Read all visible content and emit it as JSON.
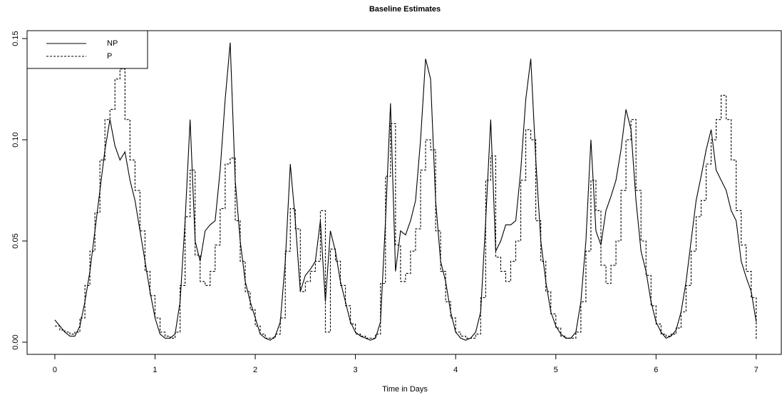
{
  "chart_data": {
    "type": "line",
    "title": "Baseline Estimates",
    "x_label": "Time in Days",
    "x": [
      0,
      0.05,
      0.1,
      0.15,
      0.2,
      0.25,
      0.3,
      0.35,
      0.4,
      0.45,
      0.5,
      0.55,
      0.6,
      0.65,
      0.7,
      0.75,
      0.8,
      0.85,
      0.9,
      0.95,
      1,
      1.05,
      1.1,
      1.15,
      1.2,
      1.25,
      1.3,
      1.35,
      1.4,
      1.45,
      1.5,
      1.55,
      1.6,
      1.65,
      1.7,
      1.75,
      1.8,
      1.85,
      1.9,
      1.95,
      2,
      2.05,
      2.1,
      2.15,
      2.2,
      2.25,
      2.3,
      2.35,
      2.4,
      2.45,
      2.5,
      2.55,
      2.6,
      2.65,
      2.7,
      2.75,
      2.8,
      2.85,
      2.9,
      2.95,
      3,
      3.05,
      3.1,
      3.15,
      3.2,
      3.25,
      3.3,
      3.35,
      3.4,
      3.45,
      3.5,
      3.55,
      3.6,
      3.65,
      3.7,
      3.75,
      3.8,
      3.85,
      3.9,
      3.95,
      4,
      4.05,
      4.1,
      4.15,
      4.2,
      4.25,
      4.3,
      4.35,
      4.4,
      4.45,
      4.5,
      4.55,
      4.6,
      4.65,
      4.7,
      4.75,
      4.8,
      4.85,
      4.9,
      4.95,
      5,
      5.05,
      5.1,
      5.15,
      5.2,
      5.25,
      5.3,
      5.35,
      5.4,
      5.45,
      5.5,
      5.55,
      5.6,
      5.65,
      5.7,
      5.75,
      5.8,
      5.85,
      5.9,
      5.95,
      6,
      6.05,
      6.1,
      6.15,
      6.2,
      6.25,
      6.3,
      6.35,
      6.4,
      6.45,
      6.5,
      6.55,
      6.6,
      6.65,
      6.7,
      6.75,
      6.8,
      6.85,
      6.9,
      6.95,
      7
    ],
    "series": [
      {
        "name": "NP",
        "color": "#000000",
        "linestyle": "solid",
        "drawstyle": "line",
        "values": [
          0.011,
          0.008,
          0.005,
          0.003,
          0.003,
          0.008,
          0.02,
          0.035,
          0.055,
          0.075,
          0.095,
          0.11,
          0.097,
          0.09,
          0.094,
          0.08,
          0.07,
          0.055,
          0.04,
          0.025,
          0.012,
          0.004,
          0.002,
          0.002,
          0.004,
          0.02,
          0.06,
          0.11,
          0.05,
          0.04,
          0.055,
          0.058,
          0.06,
          0.085,
          0.12,
          0.148,
          0.08,
          0.05,
          0.03,
          0.02,
          0.012,
          0.004,
          0.002,
          0.001,
          0.003,
          0.01,
          0.04,
          0.088,
          0.06,
          0.025,
          0.033,
          0.036,
          0.04,
          0.06,
          0.02,
          0.055,
          0.045,
          0.03,
          0.02,
          0.01,
          0.005,
          0.003,
          0.002,
          0.001,
          0.002,
          0.01,
          0.06,
          0.118,
          0.035,
          0.055,
          0.053,
          0.06,
          0.07,
          0.1,
          0.14,
          0.13,
          0.07,
          0.04,
          0.03,
          0.015,
          0.005,
          0.002,
          0.001,
          0.002,
          0.005,
          0.015,
          0.06,
          0.11,
          0.045,
          0.05,
          0.058,
          0.058,
          0.06,
          0.085,
          0.12,
          0.14,
          0.09,
          0.05,
          0.03,
          0.015,
          0.008,
          0.004,
          0.002,
          0.002,
          0.005,
          0.02,
          0.05,
          0.1,
          0.055,
          0.048,
          0.065,
          0.072,
          0.08,
          0.095,
          0.115,
          0.105,
          0.07,
          0.045,
          0.035,
          0.02,
          0.01,
          0.005,
          0.002,
          0.003,
          0.006,
          0.015,
          0.03,
          0.05,
          0.07,
          0.082,
          0.095,
          0.105,
          0.085,
          0.08,
          0.075,
          0.065,
          0.06,
          0.04,
          0.032,
          0.025,
          0.01
        ]
      },
      {
        "name": "P",
        "color": "#000000",
        "linestyle": "dashed",
        "drawstyle": "steps",
        "values": [
          0.008,
          0.006,
          0.005,
          0.004,
          0.005,
          0.012,
          0.028,
          0.045,
          0.064,
          0.09,
          0.11,
          0.115,
          0.13,
          0.135,
          0.11,
          0.09,
          0.075,
          0.055,
          0.035,
          0.023,
          0.012,
          0.005,
          0.003,
          0.002,
          0.005,
          0.028,
          0.062,
          0.085,
          0.043,
          0.03,
          0.028,
          0.035,
          0.048,
          0.066,
          0.088,
          0.091,
          0.06,
          0.04,
          0.025,
          0.016,
          0.008,
          0.004,
          0.002,
          0.002,
          0.004,
          0.012,
          0.045,
          0.066,
          0.056,
          0.025,
          0.03,
          0.035,
          0.04,
          0.065,
          0.005,
          0.046,
          0.04,
          0.028,
          0.018,
          0.009,
          0.004,
          0.003,
          0.002,
          0.002,
          0.004,
          0.029,
          0.082,
          0.108,
          0.048,
          0.03,
          0.034,
          0.045,
          0.056,
          0.085,
          0.1,
          0.095,
          0.055,
          0.035,
          0.02,
          0.012,
          0.005,
          0.003,
          0.002,
          0.002,
          0.004,
          0.022,
          0.08,
          0.092,
          0.042,
          0.035,
          0.03,
          0.04,
          0.05,
          0.08,
          0.105,
          0.1,
          0.06,
          0.04,
          0.025,
          0.014,
          0.007,
          0.003,
          0.002,
          0.002,
          0.005,
          0.02,
          0.045,
          0.08,
          0.065,
          0.038,
          0.029,
          0.038,
          0.05,
          0.075,
          0.1,
          0.11,
          0.075,
          0.05,
          0.033,
          0.018,
          0.009,
          0.004,
          0.003,
          0.004,
          0.007,
          0.015,
          0.028,
          0.045,
          0.062,
          0.07,
          0.088,
          0.1,
          0.11,
          0.122,
          0.11,
          0.09,
          0.065,
          0.048,
          0.035,
          0.022,
          0.001
        ]
      }
    ],
    "xlim": [
      -0.277,
      7.25
    ],
    "ylim": [
      -0.006,
      0.1539
    ],
    "xticks": [
      0,
      1,
      2,
      3,
      4,
      5,
      6,
      7
    ],
    "yticks": [
      {
        "value": 0,
        "label": "0.00"
      },
      {
        "value": 0.05,
        "label": "0.05"
      },
      {
        "value": 0.1,
        "label": "0.10"
      },
      {
        "value": 0.15,
        "label": "0.15"
      }
    ],
    "legend": "topleft"
  }
}
